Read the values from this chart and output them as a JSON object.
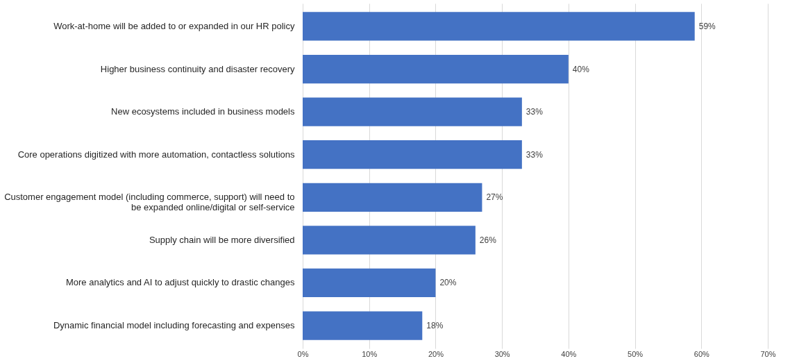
{
  "chart_data": {
    "type": "bar",
    "orientation": "horizontal",
    "categories": [
      "Work-at-home will be added to or expanded in our HR policy",
      "Higher business continuity and disaster recovery",
      "New ecosystems included in business models",
      "Core operations digitized with more automation, contactless solutions",
      "Customer engagement model (including commerce, support) will need to be expanded online/digital or self-service",
      "Supply chain will be more diversified",
      "More analytics and AI to adjust quickly to drastic changes",
      "Dynamic financial model including forecasting and expenses"
    ],
    "values": [
      59,
      40,
      33,
      33,
      27,
      26,
      20,
      18
    ],
    "value_labels": [
      "59%",
      "40%",
      "33%",
      "33%",
      "27%",
      "26%",
      "20%",
      "18%"
    ],
    "color": "#4472c4",
    "xlim": [
      0,
      70
    ],
    "xticks": [
      {
        "value": 0,
        "label": "0%"
      },
      {
        "value": 10,
        "label": "10%"
      },
      {
        "value": 20,
        "label": "20%"
      },
      {
        "value": 30,
        "label": "30%"
      },
      {
        "value": 40,
        "label": "40%"
      },
      {
        "value": 50,
        "label": "50%"
      },
      {
        "value": 60,
        "label": "60%"
      },
      {
        "value": 70,
        "label": "70%"
      }
    ],
    "grid": "x"
  }
}
